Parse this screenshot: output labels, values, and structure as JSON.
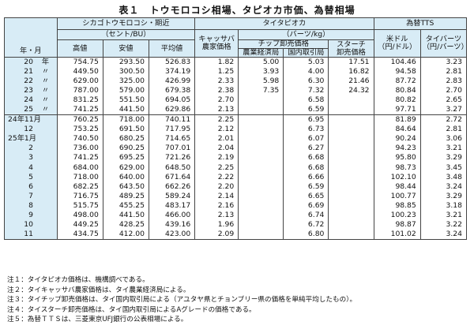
{
  "title": {
    "label": "表１",
    "text": "トウモロコシ相場、タピオカ市価、為替相場"
  },
  "header": {
    "row_label": "年・月",
    "group_chicago": "シカゴトウモロコシ・期近",
    "group_chicago_unit": "（セント/BU）",
    "group_tapioca": "タイタピオカ",
    "group_tapioca_unit": "（バーツ/kg）",
    "group_fx": "為替TTS",
    "col_high": "高値",
    "col_low": "安値",
    "col_avg": "平均値",
    "col_cassava_1": "キャッサバ",
    "col_cassava_2": "農家価格",
    "col_chip": "チップ卸売価格",
    "col_chip_agri": "農業経済局",
    "col_chip_dom": "国内取引局",
    "col_starch_1": "スターチ",
    "col_starch_2": "卸売価格",
    "col_usd_1": "米ドル",
    "col_usd_2": "（円/ドル）",
    "col_thb_1": "タイバーツ",
    "col_thb_2": "（円/バーツ）"
  },
  "rows": [
    {
      "y": "20",
      "u": "年",
      "high": "754.75",
      "low": "293.50",
      "avg": "526.83",
      "cassava": "1.82",
      "chip_agri": "5.00",
      "chip_dom": "5.03",
      "starch": "17.51",
      "usd": "104.46",
      "thb": "3.23"
    },
    {
      "y": "21",
      "u": "〃",
      "high": "449.50",
      "low": "300.50",
      "avg": "374.19",
      "cassava": "1.25",
      "chip_agri": "3.93",
      "chip_dom": "4.00",
      "starch": "16.82",
      "usd": "94.58",
      "thb": "2.81"
    },
    {
      "y": "22",
      "u": "〃",
      "high": "629.00",
      "low": "325.00",
      "avg": "426.99",
      "cassava": "2.33",
      "chip_agri": "5.98",
      "chip_dom": "6.30",
      "starch": "21.46",
      "usd": "87.72",
      "thb": "2.83"
    },
    {
      "y": "23",
      "u": "〃",
      "high": "787.00",
      "low": "579.00",
      "avg": "679.38",
      "cassava": "2.38",
      "chip_agri": "7.35",
      "chip_dom": "7.32",
      "starch": "24.32",
      "usd": "80.84",
      "thb": "2.70"
    },
    {
      "y": "24",
      "u": "〃",
      "high": "831.25",
      "low": "551.50",
      "avg": "694.05",
      "cassava": "2.70",
      "chip_agri": "",
      "chip_dom": "6.58",
      "starch": "",
      "usd": "80.82",
      "thb": "2.65"
    },
    {
      "y": "25",
      "u": "〃",
      "high": "741.25",
      "low": "441.50",
      "avg": "629.86",
      "cassava": "2.13",
      "chip_agri": "",
      "chip_dom": "6.59",
      "starch": "",
      "usd": "97.71",
      "thb": "3.27"
    },
    {
      "y": "24年11月",
      "u": "",
      "high": "760.25",
      "low": "718.00",
      "avg": "740.11",
      "cassava": "2.25",
      "chip_agri": "",
      "chip_dom": "6.95",
      "starch": "",
      "usd": "81.89",
      "thb": "2.72"
    },
    {
      "y": "12",
      "u": "",
      "high": "753.25",
      "low": "691.50",
      "avg": "717.95",
      "cassava": "2.12",
      "chip_agri": "",
      "chip_dom": "6.73",
      "starch": "",
      "usd": "84.64",
      "thb": "2.81"
    },
    {
      "y": "25年1月",
      "u": "",
      "high": "740.50",
      "low": "680.25",
      "avg": "714.65",
      "cassava": "2.01",
      "chip_agri": "",
      "chip_dom": "6.07",
      "starch": "",
      "usd": "90.24",
      "thb": "3.06"
    },
    {
      "y": "2",
      "u": "",
      "high": "736.00",
      "low": "690.25",
      "avg": "707.01",
      "cassava": "2.04",
      "chip_agri": "",
      "chip_dom": "6.27",
      "starch": "",
      "usd": "94.23",
      "thb": "3.21"
    },
    {
      "y": "3",
      "u": "",
      "high": "741.25",
      "low": "695.25",
      "avg": "721.26",
      "cassava": "2.19",
      "chip_agri": "",
      "chip_dom": "6.68",
      "starch": "",
      "usd": "95.80",
      "thb": "3.29"
    },
    {
      "y": "4",
      "u": "",
      "high": "684.00",
      "low": "629.00",
      "avg": "648.50",
      "cassava": "2.25",
      "chip_agri": "",
      "chip_dom": "6.68",
      "starch": "",
      "usd": "98.73",
      "thb": "3.45"
    },
    {
      "y": "5",
      "u": "",
      "high": "718.00",
      "low": "640.00",
      "avg": "671.64",
      "cassava": "2.22",
      "chip_agri": "",
      "chip_dom": "6.66",
      "starch": "",
      "usd": "102.10",
      "thb": "3.48"
    },
    {
      "y": "6",
      "u": "",
      "high": "682.25",
      "low": "643.50",
      "avg": "662.26",
      "cassava": "2.20",
      "chip_agri": "",
      "chip_dom": "6.59",
      "starch": "",
      "usd": "98.44",
      "thb": "3.24"
    },
    {
      "y": "7",
      "u": "",
      "high": "716.75",
      "low": "489.25",
      "avg": "589.24",
      "cassava": "2.14",
      "chip_agri": "",
      "chip_dom": "6.65",
      "starch": "",
      "usd": "100.77",
      "thb": "3.29"
    },
    {
      "y": "8",
      "u": "",
      "high": "515.75",
      "low": "455.25",
      "avg": "483.17",
      "cassava": "2.16",
      "chip_agri": "",
      "chip_dom": "6.69",
      "starch": "",
      "usd": "98.85",
      "thb": "3.18"
    },
    {
      "y": "9",
      "u": "",
      "high": "498.00",
      "low": "441.50",
      "avg": "466.00",
      "cassava": "2.13",
      "chip_agri": "",
      "chip_dom": "6.74",
      "starch": "",
      "usd": "100.23",
      "thb": "3.21"
    },
    {
      "y": "10",
      "u": "",
      "high": "449.25",
      "low": "428.25",
      "avg": "439.16",
      "cassava": "1.96",
      "chip_agri": "",
      "chip_dom": "6.72",
      "starch": "",
      "usd": "98.87",
      "thb": "3.22"
    },
    {
      "y": "11",
      "u": "",
      "high": "434.75",
      "low": "412.00",
      "avg": "423.00",
      "cassava": "2.09",
      "chip_agri": "",
      "chip_dom": "6.80",
      "starch": "",
      "usd": "101.02",
      "thb": "3.24"
    }
  ],
  "notes": [
    "注１：タイタピオカ価格は、機構調べである。",
    "注２：タイキャッサバ農家価格は、タイ農業経済局による。",
    "注３：タイチップ卸売価格は、タイ国内取引局による（アユタヤ県とチョンブリー県の価格を単純平均したもの）。",
    "注４：タイスターチ卸売価格は、タイ国内取引局によるAグレードの価格である。",
    "注５：為替ＴＴＳは、三菱東京UFJ銀行の公表相場による。"
  ]
}
